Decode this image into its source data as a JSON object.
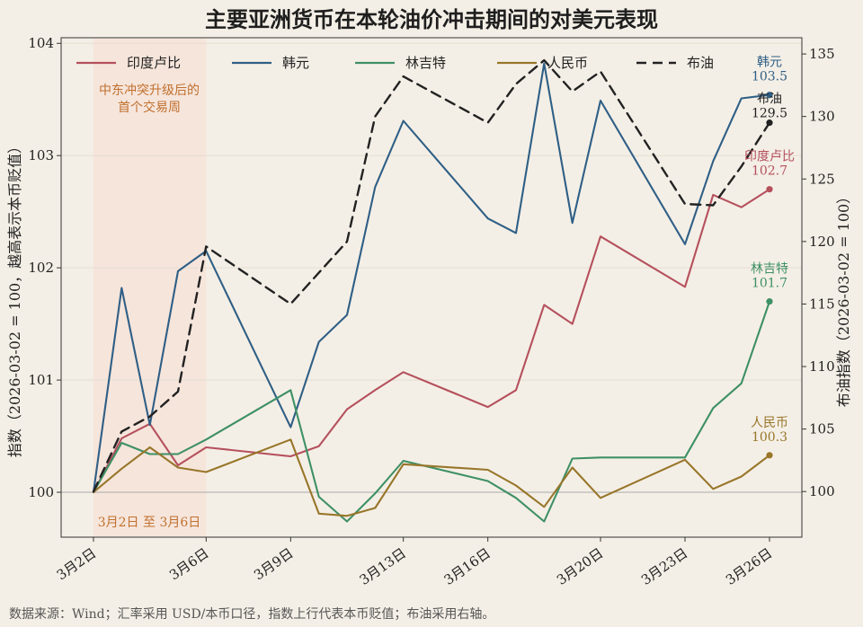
{
  "chart_data": {
    "type": "line",
    "title": "主要亚洲货币在本轮油价冲击期间的对美元表现",
    "ylabel_left": "指数（2026-03-02 = 100，越高表示本币贬值）",
    "ylabel_right": "布油指数（2026-03-02 = 100）",
    "ylim_left": [
      99.6,
      104.05
    ],
    "ylim_right": [
      96.35,
      136.3
    ],
    "yticks_left": [
      "100",
      "101",
      "102",
      "103",
      "104"
    ],
    "yticks_left_values": [
      100,
      101,
      102,
      103,
      104
    ],
    "yticks_right": [
      "100",
      "105",
      "110",
      "115",
      "120",
      "125",
      "130",
      "135"
    ],
    "yticks_right_values": [
      100,
      105,
      110,
      115,
      120,
      125,
      130,
      135
    ],
    "x": [
      "2026-03-02",
      "2026-03-03",
      "2026-03-04",
      "2026-03-05",
      "2026-03-06",
      "2026-03-09",
      "2026-03-10",
      "2026-03-11",
      "2026-03-12",
      "2026-03-13",
      "2026-03-16",
      "2026-03-17",
      "2026-03-18",
      "2026-03-19",
      "2026-03-20",
      "2026-03-23",
      "2026-03-24",
      "2026-03-25",
      "2026-03-26"
    ],
    "xticks": [
      "2026-03-02",
      "2026-03-06",
      "2026-03-09",
      "2026-03-13",
      "2026-03-16",
      "2026-03-20",
      "2026-03-23",
      "2026-03-26"
    ],
    "xtick_labels": [
      "3月2日",
      "3月6日",
      "3月9日",
      "3月13日",
      "3月16日",
      "3月20日",
      "3月23日",
      "3月26日"
    ],
    "grid": "horizontal",
    "legend_position": "top",
    "series": [
      {
        "name": "印度卢比",
        "axis": "left",
        "color": "#b5505d",
        "values": [
          100.0,
          100.48,
          100.61,
          100.24,
          100.4,
          100.32,
          100.41,
          100.74,
          100.91,
          101.07,
          100.76,
          100.91,
          101.67,
          101.5,
          102.28,
          101.83,
          102.65,
          102.54,
          102.7
        ]
      },
      {
        "name": "韩元",
        "axis": "left",
        "color": "#2f5f86",
        "values": [
          100.0,
          101.82,
          100.6,
          101.97,
          102.15,
          100.58,
          101.34,
          101.58,
          102.72,
          103.31,
          102.44,
          102.31,
          103.82,
          102.4,
          103.49,
          102.21,
          102.95,
          103.51,
          103.54
        ]
      },
      {
        "name": "林吉特",
        "axis": "left",
        "color": "#3e9065",
        "values": [
          100.0,
          100.44,
          100.34,
          100.34,
          100.47,
          100.91,
          99.96,
          99.74,
          99.99,
          100.28,
          100.1,
          99.95,
          99.74,
          100.3,
          100.31,
          100.31,
          100.75,
          100.97,
          101.7
        ]
      },
      {
        "name": "人民币",
        "axis": "left",
        "color": "#98762a",
        "values": [
          100.0,
          100.21,
          100.4,
          100.22,
          100.18,
          100.47,
          99.81,
          99.79,
          99.86,
          100.25,
          100.2,
          100.06,
          99.87,
          100.22,
          99.95,
          100.29,
          100.03,
          100.14,
          100.33
        ]
      },
      {
        "name": "布油",
        "axis": "right",
        "color": "#222222",
        "dashed": true,
        "values": [
          100.0,
          104.8,
          106.0,
          108.0,
          119.6,
          115.0,
          117.5,
          120.0,
          130.0,
          133.2,
          129.5,
          132.6,
          134.5,
          132.0,
          133.6,
          123.0,
          122.9,
          126.0,
          129.5
        ]
      }
    ],
    "end_labels": [
      {
        "series": "韩元",
        "name": "韩元",
        "value": "103.5"
      },
      {
        "series": "布油",
        "name": "布油",
        "value": "129.5"
      },
      {
        "series": "印度卢比",
        "name": "印度卢比",
        "value": "102.7"
      },
      {
        "series": "林吉特",
        "name": "林吉特",
        "value": "101.7"
      },
      {
        "series": "人民币",
        "name": "人民币",
        "value": "100.3"
      }
    ],
    "annotations": {
      "shaded_period_label": "中东冲突升级后的首个交易周",
      "shaded_period_label_lines": [
        "中东冲突升级后的",
        "首个交易周"
      ],
      "shaded_period_range": "3月2日 至 3月6日",
      "shade_from": "2026-03-02",
      "shade_to": "2026-03-06",
      "shade_color": "#f7ddd2"
    },
    "source": "数据来源：Wind；汇率采用 USD/本币口径，指数上行代表本币贬值；布油采用右轴。"
  }
}
